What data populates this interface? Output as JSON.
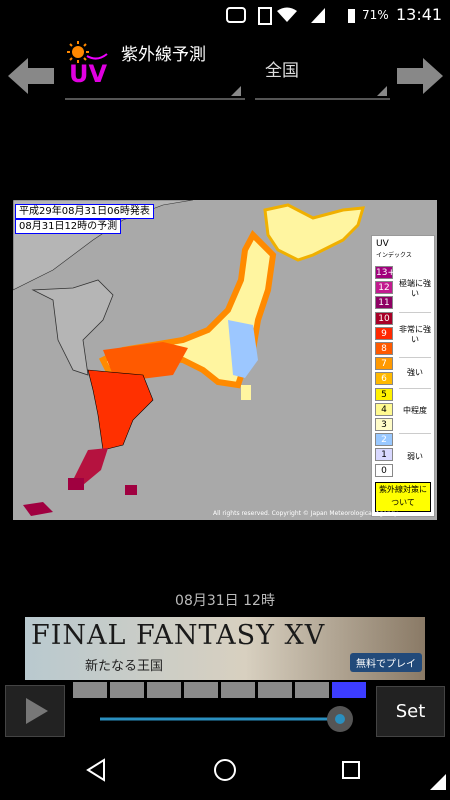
{
  "status_bar": {
    "battery": "71%",
    "time": "13:41"
  },
  "header": {
    "product_icon_label": "UV",
    "product": "紫外線予測",
    "region": "全国"
  },
  "map": {
    "issued": "平成29年08月31日06時発表",
    "forecast": "08月31日12時の予測",
    "copyright": "All rights reserved. Copyright © Japan Meteorological Agency",
    "legend": {
      "title": "UV",
      "subtitle": "インデックス",
      "levels": [
        {
          "label": "13+",
          "color": "#a1007c"
        },
        {
          "label": "12",
          "color": "#c21a8f"
        },
        {
          "label": "11",
          "color": "#8e0063"
        },
        {
          "label": "10",
          "color": "#a80027"
        },
        {
          "label": "9",
          "color": "#ff2800"
        },
        {
          "label": "8",
          "color": "#ff5a00"
        },
        {
          "label": "7",
          "color": "#ff9900"
        },
        {
          "label": "6",
          "color": "#ffb900"
        },
        {
          "label": "5",
          "color": "#fff100"
        },
        {
          "label": "4",
          "color": "#fffa90"
        },
        {
          "label": "3",
          "color": "#fffcc8"
        },
        {
          "label": "2",
          "color": "#99c8ff"
        },
        {
          "label": "1",
          "color": "#d8d8ff"
        },
        {
          "label": "0",
          "color": "#ffffff"
        }
      ],
      "groups": [
        "極端に強い",
        "非常に強い",
        "強い",
        "中程度",
        "弱い"
      ],
      "link": "紫外線対策について"
    }
  },
  "timeline": {
    "date": "08月31日 12時"
  },
  "ad": {
    "title": "FINAL FANTASY XV",
    "subtitle": "新たなる王国",
    "button": "無料でプレイ"
  },
  "controls": {
    "set": "Set"
  }
}
